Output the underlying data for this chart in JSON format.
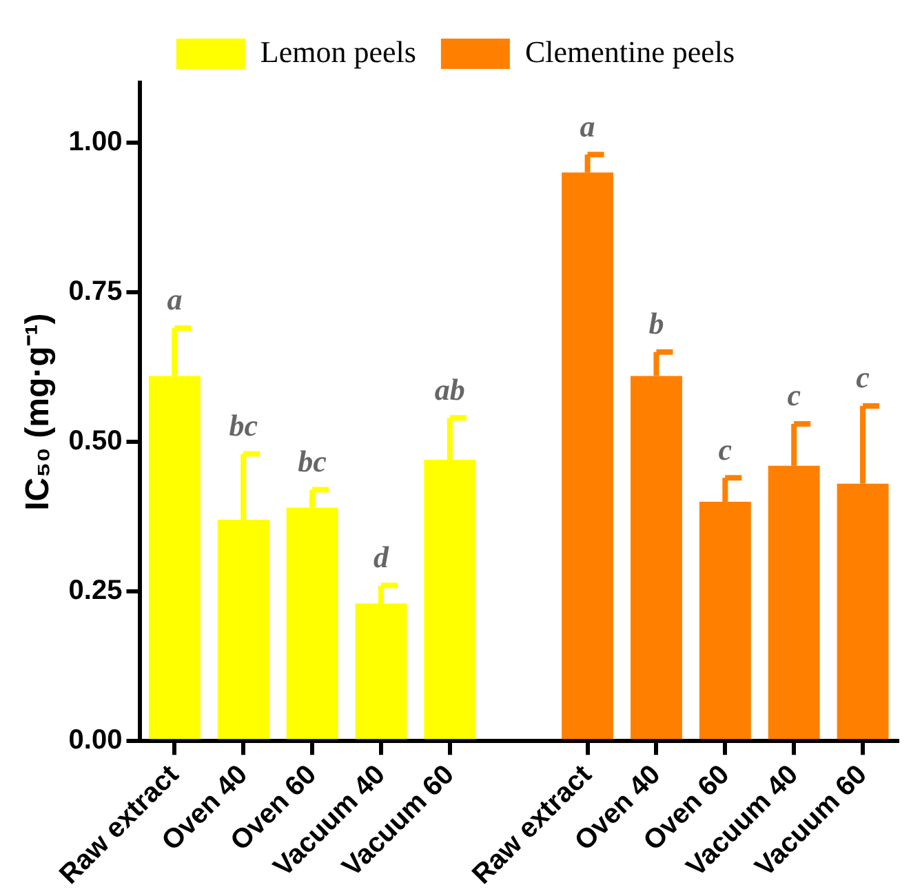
{
  "chart_data": {
    "type": "bar",
    "ylabel": "IC₅₀ (mg·g⁻¹)",
    "categories": [
      "Raw extract",
      "Oven 40",
      "Oven 60",
      "Vacuum 40",
      "Vacuum 60",
      null,
      "Raw extract",
      "Oven 40",
      "Oven 60",
      "Vacuum 40",
      "Vacuum 60"
    ],
    "series": [
      {
        "name": "Lemon peels",
        "color": "#ffff00",
        "values": [
          0.61,
          0.37,
          0.39,
          0.23,
          0.47,
          null,
          null,
          null,
          null,
          null,
          null
        ],
        "errors": [
          [
            0.61,
            0.69
          ],
          [
            0.37,
            0.48
          ],
          [
            0.39,
            0.42
          ],
          [
            0.23,
            0.26
          ],
          [
            0.47,
            0.54
          ],
          null,
          null,
          null,
          null,
          null,
          null
        ],
        "value_labels": [
          "a",
          "bc",
          "bc",
          "d",
          "ab",
          null,
          null,
          null,
          null,
          null,
          null
        ]
      },
      {
        "name": "Clementine peels",
        "color": "#ff8000",
        "values": [
          null,
          null,
          null,
          null,
          null,
          null,
          0.95,
          0.61,
          0.4,
          0.46,
          0.43
        ],
        "errors": [
          null,
          null,
          null,
          null,
          null,
          null,
          [
            0.95,
            0.98
          ],
          [
            0.61,
            0.65
          ],
          [
            0.4,
            0.44
          ],
          [
            0.46,
            0.53
          ],
          [
            0.43,
            0.56
          ]
        ],
        "value_labels": [
          null,
          null,
          null,
          null,
          null,
          null,
          "a",
          "b",
          "c",
          "c",
          "c"
        ]
      }
    ],
    "ylim": [
      0,
      1.1
    ],
    "yticks": [
      {
        "value": 0,
        "label": "0.00"
      },
      {
        "value": 0.25,
        "label": "0.25"
      },
      {
        "value": 0.5,
        "label": "0.50"
      },
      {
        "value": 0.75,
        "label": "0.75"
      },
      {
        "value": 1,
        "label": "1.00"
      }
    ],
    "grid": false,
    "legend": "top"
  }
}
